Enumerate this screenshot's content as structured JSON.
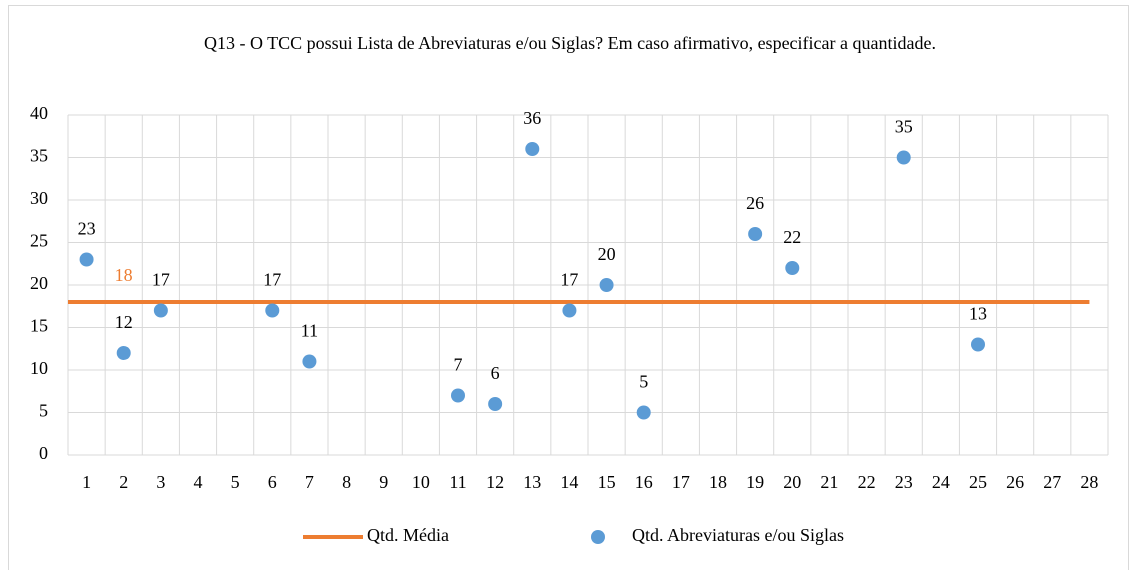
{
  "chart_data": {
    "type": "scatter",
    "title": "Q13 - O TCC possui Lista de Abreviaturas e/ou Siglas? Em caso afirmativo, especificar a quantidade.",
    "categories": [
      "1",
      "2",
      "3",
      "4",
      "5",
      "6",
      "7",
      "8",
      "9",
      "10",
      "11",
      "12",
      "13",
      "14",
      "15",
      "16",
      "17",
      "18",
      "19",
      "20",
      "21",
      "22",
      "23",
      "24",
      "25",
      "26",
      "27",
      "28"
    ],
    "ylim": [
      0,
      40
    ],
    "yticks": [
      0,
      5,
      10,
      15,
      20,
      25,
      30,
      35,
      40
    ],
    "grid": true,
    "legend": "bottom",
    "series": [
      {
        "name": "Qtd. Média",
        "type": "line",
        "color": "#ed7d31",
        "values": [
          18,
          18,
          18,
          18,
          18,
          18,
          18,
          18,
          18,
          18,
          18,
          18,
          18,
          18,
          18,
          18,
          18,
          18,
          18,
          18,
          18,
          18,
          18,
          18,
          18,
          18,
          18,
          18
        ]
      },
      {
        "name": "Qtd. Abreviaturas e/ou Siglas",
        "type": "scatter",
        "color": "#5b9bd5",
        "values": [
          23,
          12,
          17,
          null,
          null,
          17,
          11,
          null,
          null,
          null,
          7,
          6,
          36,
          17,
          20,
          5,
          null,
          null,
          26,
          22,
          null,
          null,
          35,
          null,
          13,
          null,
          null,
          null
        ]
      }
    ]
  }
}
